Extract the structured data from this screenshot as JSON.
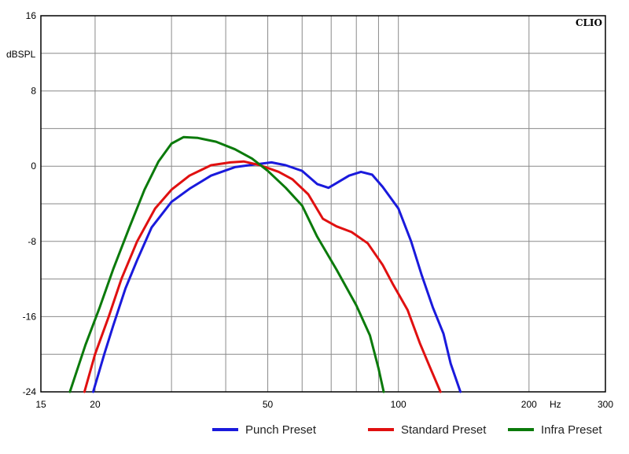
{
  "chart_data": {
    "type": "line",
    "brand": "CLIO",
    "ylabel": "dBSPL",
    "xunit": "Hz",
    "xscale": "log",
    "xlim": [
      15,
      300
    ],
    "ylim": [
      -24,
      16
    ],
    "grid": true,
    "legend_position": "bottom",
    "x_ticks": [
      {
        "value": 15,
        "label": "15"
      },
      {
        "value": 20,
        "label": "20"
      },
      {
        "value": 50,
        "label": "50"
      },
      {
        "value": 100,
        "label": "100"
      },
      {
        "value": 200,
        "label": "200"
      },
      {
        "value": 300,
        "label": "300"
      }
    ],
    "x_grid": [
      20,
      30,
      40,
      50,
      60,
      70,
      80,
      90,
      100,
      200
    ],
    "y_ticks": [
      {
        "value": 16,
        "label": "16"
      },
      {
        "value": 8,
        "label": "8"
      },
      {
        "value": 0,
        "label": "0"
      },
      {
        "value": -8,
        "label": "-8"
      },
      {
        "value": -16,
        "label": "-16"
      },
      {
        "value": -24,
        "label": "-24"
      }
    ],
    "y_grid": [
      -20,
      -16,
      -12,
      -8,
      -4,
      0,
      4,
      8,
      12
    ],
    "series": [
      {
        "name": "Punch Preset",
        "color": "#1a1adc",
        "points": [
          [
            19.8,
            -24
          ],
          [
            21,
            -20
          ],
          [
            22,
            -17
          ],
          [
            23.5,
            -13
          ],
          [
            25,
            -10
          ],
          [
            27,
            -6.5
          ],
          [
            30,
            -3.8
          ],
          [
            33,
            -2.4
          ],
          [
            37,
            -1.0
          ],
          [
            42,
            -0.1
          ],
          [
            47,
            0.2
          ],
          [
            51,
            0.4
          ],
          [
            55,
            0.1
          ],
          [
            60,
            -0.5
          ],
          [
            65,
            -1.9
          ],
          [
            69,
            -2.3
          ],
          [
            72,
            -1.8
          ],
          [
            77,
            -1.0
          ],
          [
            82,
            -0.6
          ],
          [
            87,
            -0.9
          ],
          [
            92,
            -2.2
          ],
          [
            100,
            -4.5
          ],
          [
            107,
            -8.0
          ],
          [
            113,
            -11.5
          ],
          [
            120,
            -15.0
          ],
          [
            127,
            -17.8
          ],
          [
            132,
            -21.0
          ],
          [
            139,
            -24
          ]
        ]
      },
      {
        "name": "Standard Preset",
        "color": "#e01010",
        "points": [
          [
            18.9,
            -24
          ],
          [
            20,
            -20
          ],
          [
            21.5,
            -16
          ],
          [
            23,
            -12
          ],
          [
            25,
            -8
          ],
          [
            27.5,
            -4.5
          ],
          [
            30,
            -2.5
          ],
          [
            33,
            -1.0
          ],
          [
            37,
            0.1
          ],
          [
            41,
            0.4
          ],
          [
            44,
            0.5
          ],
          [
            48,
            0.1
          ],
          [
            53,
            -0.6
          ],
          [
            57,
            -1.4
          ],
          [
            62,
            -3.0
          ],
          [
            67,
            -5.6
          ],
          [
            72,
            -6.4
          ],
          [
            78,
            -7.0
          ],
          [
            85,
            -8.2
          ],
          [
            92,
            -10.5
          ],
          [
            97,
            -12.5
          ],
          [
            105,
            -15.3
          ],
          [
            112,
            -18.8
          ],
          [
            118,
            -21.3
          ],
          [
            125,
            -24
          ]
        ]
      },
      {
        "name": "Infra Preset",
        "color": "#0b7a0b",
        "points": [
          [
            17.5,
            -24
          ],
          [
            19,
            -19
          ],
          [
            20.5,
            -15
          ],
          [
            22,
            -11
          ],
          [
            24,
            -6.5
          ],
          [
            26,
            -2.5
          ],
          [
            28,
            0.5
          ],
          [
            30,
            2.4
          ],
          [
            32,
            3.1
          ],
          [
            34.5,
            3.0
          ],
          [
            38,
            2.6
          ],
          [
            42,
            1.8
          ],
          [
            46,
            0.8
          ],
          [
            50,
            -0.5
          ],
          [
            55,
            -2.3
          ],
          [
            60,
            -4.2
          ],
          [
            65,
            -7.5
          ],
          [
            72,
            -11.0
          ],
          [
            80,
            -14.8
          ],
          [
            86,
            -18.0
          ],
          [
            90,
            -21.5
          ],
          [
            92.5,
            -24
          ]
        ]
      }
    ]
  }
}
